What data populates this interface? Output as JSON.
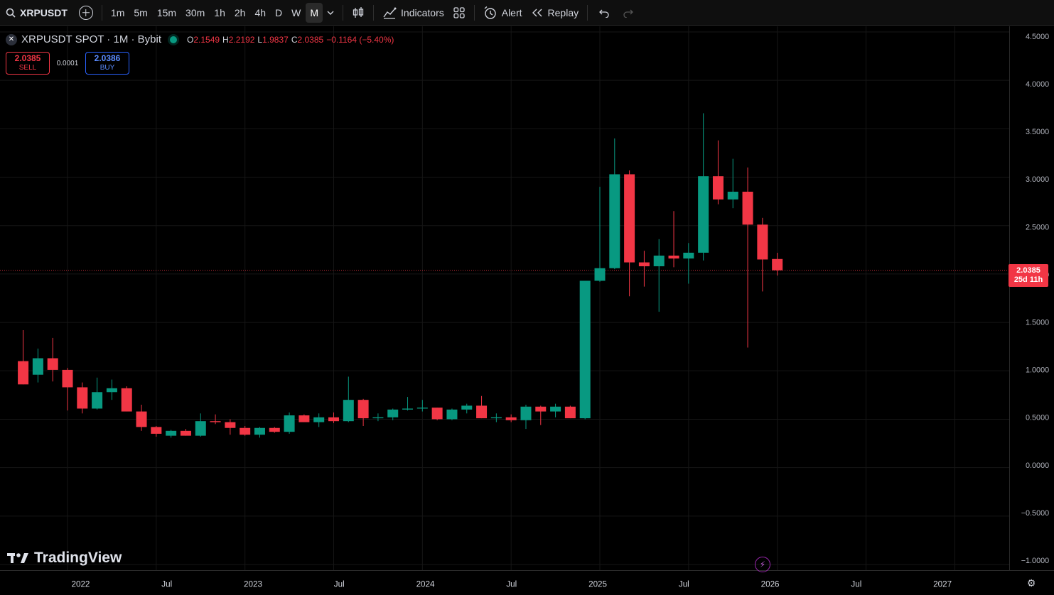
{
  "toolbar": {
    "symbol": "XRPUSDT",
    "intervals": [
      "1m",
      "5m",
      "15m",
      "30m",
      "1h",
      "2h",
      "4h",
      "D",
      "W",
      "M"
    ],
    "active_interval": "M",
    "indicators_label": "Indicators",
    "alert_label": "Alert",
    "replay_label": "Replay"
  },
  "legend": {
    "title": "XRPUSDT SPOT · 1M · Bybit",
    "o_key": "O",
    "o_val": "2.1549",
    "h_key": "H",
    "h_val": "2.2192",
    "l_key": "L",
    "l_val": "1.9837",
    "c_key": "C",
    "c_val": "2.0385",
    "change": "−0.1164 (−5.40%)"
  },
  "trade": {
    "sell_price": "2.0385",
    "sell_label": "SELL",
    "spread": "0.0001",
    "buy_price": "2.0386",
    "buy_label": "BUY"
  },
  "price_tag": {
    "price": "2.0385",
    "countdown": "25d 11h"
  },
  "branding": "TradingView",
  "colors": {
    "up": "#089981",
    "down": "#f23645",
    "bg": "#000000"
  },
  "chart_data": {
    "type": "candlestick",
    "y_ticks": [
      "4.5000",
      "4.0000",
      "3.5000",
      "3.0000",
      "2.5000",
      "2.0000",
      "1.5000",
      "1.0000",
      "0.5000",
      "0.0000",
      "−0.5000",
      "−1.0000"
    ],
    "x_ticks": [
      "2022",
      "Jul",
      "2023",
      "Jul",
      "2024",
      "Jul",
      "2025",
      "Jul",
      "2026",
      "Jul",
      "2027"
    ],
    "ylim": [
      -1.0,
      4.5
    ],
    "current_price": 2.0385,
    "candles": [
      {
        "t": "2021-10",
        "o": 1.1,
        "h": 1.42,
        "l": 0.86,
        "c": 0.86
      },
      {
        "t": "2021-11",
        "o": 0.96,
        "h": 1.23,
        "l": 0.88,
        "c": 1.13
      },
      {
        "t": "2021-12",
        "o": 1.13,
        "h": 1.34,
        "l": 0.89,
        "c": 1.01
      },
      {
        "t": "2022-01",
        "o": 1.01,
        "h": 1.03,
        "l": 0.59,
        "c": 0.83
      },
      {
        "t": "2022-02",
        "o": 0.83,
        "h": 0.88,
        "l": 0.56,
        "c": 0.61
      },
      {
        "t": "2022-03",
        "o": 0.61,
        "h": 0.93,
        "l": 0.6,
        "c": 0.78
      },
      {
        "t": "2022-04",
        "o": 0.78,
        "h": 0.91,
        "l": 0.7,
        "c": 0.82
      },
      {
        "t": "2022-05",
        "o": 0.82,
        "h": 0.84,
        "l": 0.58,
        "c": 0.58
      },
      {
        "t": "2022-06",
        "o": 0.58,
        "h": 0.65,
        "l": 0.38,
        "c": 0.42
      },
      {
        "t": "2022-07",
        "o": 0.42,
        "h": 0.43,
        "l": 0.32,
        "c": 0.35
      },
      {
        "t": "2022-08",
        "o": 0.33,
        "h": 0.39,
        "l": 0.31,
        "c": 0.38
      },
      {
        "t": "2022-09",
        "o": 0.38,
        "h": 0.4,
        "l": 0.33,
        "c": 0.33
      },
      {
        "t": "2022-10",
        "o": 0.33,
        "h": 0.56,
        "l": 0.32,
        "c": 0.48
      },
      {
        "t": "2022-11",
        "o": 0.48,
        "h": 0.55,
        "l": 0.45,
        "c": 0.47
      },
      {
        "t": "2022-12",
        "o": 0.47,
        "h": 0.5,
        "l": 0.34,
        "c": 0.41
      },
      {
        "t": "2023-01",
        "o": 0.41,
        "h": 0.43,
        "l": 0.33,
        "c": 0.34
      },
      {
        "t": "2023-02",
        "o": 0.34,
        "h": 0.42,
        "l": 0.31,
        "c": 0.41
      },
      {
        "t": "2023-03",
        "o": 0.41,
        "h": 0.42,
        "l": 0.36,
        "c": 0.37
      },
      {
        "t": "2023-04",
        "o": 0.37,
        "h": 0.57,
        "l": 0.35,
        "c": 0.54
      },
      {
        "t": "2023-05",
        "o": 0.54,
        "h": 0.55,
        "l": 0.47,
        "c": 0.47
      },
      {
        "t": "2023-06",
        "o": 0.47,
        "h": 0.56,
        "l": 0.42,
        "c": 0.52
      },
      {
        "t": "2023-07",
        "o": 0.52,
        "h": 0.57,
        "l": 0.46,
        "c": 0.48
      },
      {
        "t": "2023-08",
        "o": 0.48,
        "h": 0.94,
        "l": 0.47,
        "c": 0.7
      },
      {
        "t": "2023-09",
        "o": 0.7,
        "h": 0.71,
        "l": 0.43,
        "c": 0.51
      },
      {
        "t": "2023-10",
        "o": 0.51,
        "h": 0.56,
        "l": 0.48,
        "c": 0.52
      },
      {
        "t": "2023-11",
        "o": 0.52,
        "h": 0.61,
        "l": 0.49,
        "c": 0.6
      },
      {
        "t": "2023-12",
        "o": 0.6,
        "h": 0.73,
        "l": 0.59,
        "c": 0.61
      },
      {
        "t": "2024-01",
        "o": 0.61,
        "h": 0.7,
        "l": 0.58,
        "c": 0.62
      },
      {
        "t": "2024-02",
        "o": 0.62,
        "h": 0.62,
        "l": 0.49,
        "c": 0.5
      },
      {
        "t": "2024-03",
        "o": 0.5,
        "h": 0.61,
        "l": 0.49,
        "c": 0.6
      },
      {
        "t": "2024-04",
        "o": 0.6,
        "h": 0.66,
        "l": 0.56,
        "c": 0.64
      },
      {
        "t": "2024-05",
        "o": 0.64,
        "h": 0.74,
        "l": 0.51,
        "c": 0.51
      },
      {
        "t": "2024-06",
        "o": 0.51,
        "h": 0.56,
        "l": 0.47,
        "c": 0.52
      },
      {
        "t": "2024-07",
        "o": 0.52,
        "h": 0.55,
        "l": 0.47,
        "c": 0.49
      },
      {
        "t": "2024-08",
        "o": 0.49,
        "h": 0.65,
        "l": 0.4,
        "c": 0.63
      },
      {
        "t": "2024-09",
        "o": 0.63,
        "h": 0.64,
        "l": 0.44,
        "c": 0.58
      },
      {
        "t": "2024-10",
        "o": 0.58,
        "h": 0.66,
        "l": 0.52,
        "c": 0.63
      },
      {
        "t": "2024-11",
        "o": 0.63,
        "h": 0.64,
        "l": 0.51,
        "c": 0.51
      },
      {
        "t": "2024-12",
        "o": 0.51,
        "h": 1.93,
        "l": 0.5,
        "c": 1.93
      },
      {
        "t": "2025-01",
        "o": 1.93,
        "h": 2.9,
        "l": 1.92,
        "c": 2.06
      },
      {
        "t": "2025-02",
        "o": 2.06,
        "h": 3.4,
        "l": 2.05,
        "c": 3.03
      },
      {
        "t": "2025-03",
        "o": 3.03,
        "h": 3.07,
        "l": 1.77,
        "c": 2.12
      },
      {
        "t": "2025-04",
        "o": 2.12,
        "h": 2.24,
        "l": 1.87,
        "c": 2.08
      },
      {
        "t": "2025-05",
        "o": 2.08,
        "h": 2.36,
        "l": 1.61,
        "c": 2.19
      },
      {
        "t": "2025-06",
        "o": 2.19,
        "h": 2.65,
        "l": 2.07,
        "c": 2.16
      },
      {
        "t": "2025-07",
        "o": 2.16,
        "h": 2.32,
        "l": 1.9,
        "c": 2.22
      },
      {
        "t": "2025-08",
        "o": 2.22,
        "h": 3.66,
        "l": 2.14,
        "c": 3.01
      },
      {
        "t": "2025-09",
        "o": 3.01,
        "h": 3.38,
        "l": 2.72,
        "c": 2.77
      },
      {
        "t": "2025-10",
        "o": 2.77,
        "h": 3.19,
        "l": 2.68,
        "c": 2.85
      },
      {
        "t": "2025-11",
        "o": 2.85,
        "h": 3.1,
        "l": 1.24,
        "c": 2.51
      },
      {
        "t": "2025-12",
        "o": 2.51,
        "h": 2.58,
        "l": 1.82,
        "c": 2.15
      },
      {
        "t": "2026-01",
        "o": 2.1549,
        "h": 2.2192,
        "l": 1.9837,
        "c": 2.0385
      }
    ]
  }
}
